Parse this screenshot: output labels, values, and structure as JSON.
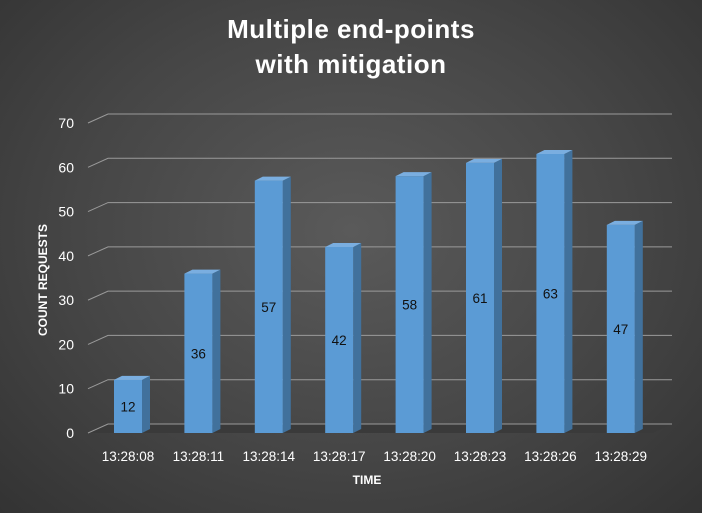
{
  "chart_data": {
    "type": "bar",
    "title": [
      "Multiple end-points",
      "with mitigation"
    ],
    "xlabel": "TIME",
    "ylabel": "COUNT REQUESTS",
    "categories": [
      "13:28:08",
      "13:28:11",
      "13:28:14",
      "13:28:17",
      "13:28:20",
      "13:28:23",
      "13:28:26",
      "13:28:29"
    ],
    "values": [
      12,
      36,
      57,
      42,
      58,
      61,
      63,
      47
    ],
    "ylim": [
      0,
      70
    ],
    "yticks": [
      0,
      10,
      20,
      30,
      40,
      50,
      60,
      70
    ],
    "grid": true,
    "legend": "none",
    "style": "3d-column",
    "colors": {
      "bar_front": "#5b9bd5",
      "bar_side": "#41719c",
      "bar_top": "#7aaee0"
    }
  }
}
